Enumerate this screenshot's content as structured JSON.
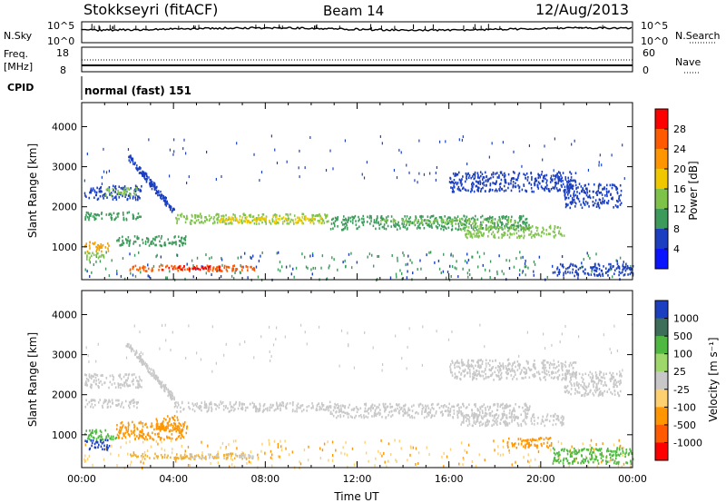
{
  "header": {
    "station": "Stokkseyri (fitACF)",
    "beam": "Beam 14",
    "date": "12/Aug/2013"
  },
  "summary_panels": {
    "nsky_label": "N.Sky",
    "nsky_ticks": [
      "10^5",
      "10^0"
    ],
    "nsearch_label": "N.Search",
    "nsearch_ticks": [
      "10^5",
      "10^0"
    ],
    "freq_label": "Freq.",
    "freq_unit": "[MHz]",
    "freq_ticks": [
      "18",
      "8"
    ],
    "nave_label": "Nave",
    "nave_ticks": [
      "60",
      "0"
    ],
    "cpid_label": "CPID",
    "cpid_value": "normal (fast) 151"
  },
  "chart_data": [
    {
      "type": "heatmap",
      "name": "power",
      "ylabel": "Slant Range [km]",
      "ylim": [
        180,
        4600
      ],
      "yticks": [
        1000,
        2000,
        3000,
        4000
      ],
      "xlim": [
        0,
        24
      ],
      "colorbar_label": "Power [dB]",
      "colorbar_ticks": [
        "28",
        "24",
        "20",
        "16",
        "12",
        "8",
        "4"
      ],
      "colorbar_colors": [
        "#ff0000",
        "#ff5a00",
        "#ff9600",
        "#f0c800",
        "#7fc24a",
        "#3c9a5a",
        "#1b3fc0",
        "#0a14ff"
      ],
      "bands": [
        {
          "t0": 0.1,
          "t1": 2.6,
          "r0": 2200,
          "r1": 2550,
          "color": "#1b3fc0"
        },
        {
          "t0": 0.1,
          "t1": 2.6,
          "r0": 1700,
          "r1": 1900,
          "color": "#3c9a5a"
        },
        {
          "t0": 1.0,
          "t1": 2.4,
          "r0": 2300,
          "r1": 2500,
          "color": "#7fc24a"
        },
        {
          "t0": 0.1,
          "t1": 1.2,
          "r0": 900,
          "r1": 1150,
          "color": "#f0a000"
        },
        {
          "t0": 0.1,
          "t1": 1.0,
          "r0": 700,
          "r1": 900,
          "color": "#7fc24a"
        },
        {
          "t0": 1.5,
          "t1": 4.6,
          "r0": 1050,
          "r1": 1300,
          "color": "#3c9a5a"
        },
        {
          "t0": 2.0,
          "t1": 7.5,
          "r0": 420,
          "r1": 560,
          "color": "#ff5a00"
        },
        {
          "t0": 3.5,
          "t1": 6.0,
          "r0": 450,
          "r1": 550,
          "color": "#ff0000"
        },
        {
          "t0": 4.0,
          "t1": 10.8,
          "r0": 1600,
          "r1": 1850,
          "color": "#7fc24a"
        },
        {
          "t0": 6.0,
          "t1": 10.5,
          "r0": 1620,
          "r1": 1780,
          "color": "#f0c800"
        },
        {
          "t0": 10.8,
          "t1": 19.5,
          "r0": 1450,
          "r1": 1800,
          "color": "#3c9a5a"
        },
        {
          "t0": 13.0,
          "t1": 19.0,
          "r0": 1600,
          "r1": 1720,
          "color": "#7fc24a"
        },
        {
          "t0": 16.5,
          "t1": 21.0,
          "r0": 1250,
          "r1": 1550,
          "color": "#7fc24a"
        },
        {
          "t0": 20.5,
          "t1": 24.0,
          "r0": 300,
          "r1": 600,
          "color": "#1b3fc0"
        },
        {
          "t0": 21.0,
          "t1": 23.5,
          "r0": 2000,
          "r1": 2600,
          "color": "#1b3fc0"
        },
        {
          "t0": 16.0,
          "t1": 21.5,
          "r0": 2400,
          "r1": 2900,
          "color": "#1b3fc0"
        }
      ],
      "streak": {
        "t0": 2.0,
        "r0": 3300,
        "t1": 4.0,
        "r1": 1900,
        "color": "#1b3fc0"
      }
    },
    {
      "type": "heatmap",
      "name": "velocity",
      "ylabel": "Slant Range [km]",
      "xlabel": "Time UT",
      "ylim": [
        180,
        4600
      ],
      "yticks": [
        1000,
        2000,
        3000,
        4000
      ],
      "xlim": [
        0,
        24
      ],
      "xticks": [
        "00:00",
        "04:00",
        "08:00",
        "12:00",
        "16:00",
        "20:00",
        "00:00"
      ],
      "colorbar_label": "Velocity [m s⁻¹]",
      "colorbar_ticks": [
        "1000",
        "500",
        "100",
        "25",
        "-25",
        "-100",
        "-500",
        "-1000"
      ],
      "colorbar_colors": [
        "#1b3fc0",
        "#3c6e5a",
        "#4fb840",
        "#9ed86a",
        "#c8c8c8",
        "#ffd070",
        "#ff9600",
        "#ff5a00",
        "#ff0000"
      ],
      "bands": [
        {
          "t0": 0.1,
          "t1": 2.6,
          "r0": 2200,
          "r1": 2550,
          "color": "#c8c8c8"
        },
        {
          "t0": 0.1,
          "t1": 2.6,
          "r0": 1700,
          "r1": 1900,
          "color": "#c8c8c8"
        },
        {
          "t0": 0.1,
          "t1": 1.5,
          "r0": 900,
          "r1": 1150,
          "color": "#4fb840"
        },
        {
          "t0": 0.1,
          "t1": 1.2,
          "r0": 650,
          "r1": 900,
          "color": "#1b3fc0"
        },
        {
          "t0": 1.5,
          "t1": 4.6,
          "r0": 900,
          "r1": 1350,
          "color": "#ff9600"
        },
        {
          "t0": 3.2,
          "t1": 4.4,
          "r0": 1100,
          "r1": 1500,
          "color": "#ff9600"
        },
        {
          "t0": 2.0,
          "t1": 7.5,
          "r0": 420,
          "r1": 560,
          "color": "#f0b030"
        },
        {
          "t0": 4.5,
          "t1": 7.5,
          "r0": 440,
          "r1": 540,
          "color": "#c8c8c8"
        },
        {
          "t0": 4.0,
          "t1": 10.8,
          "r0": 1600,
          "r1": 1850,
          "color": "#c8c8c8"
        },
        {
          "t0": 10.8,
          "t1": 19.5,
          "r0": 1450,
          "r1": 1800,
          "color": "#c8c8c8"
        },
        {
          "t0": 16.5,
          "t1": 21.0,
          "r0": 1250,
          "r1": 1550,
          "color": "#c8c8c8"
        },
        {
          "t0": 18.5,
          "t1": 20.5,
          "r0": 700,
          "r1": 950,
          "color": "#ff9600"
        },
        {
          "t0": 20.5,
          "t1": 24.0,
          "r0": 300,
          "r1": 700,
          "color": "#4fb840"
        },
        {
          "t0": 21.0,
          "t1": 23.5,
          "r0": 2000,
          "r1": 2600,
          "color": "#c8c8c8"
        },
        {
          "t0": 16.0,
          "t1": 21.5,
          "r0": 2400,
          "r1": 2900,
          "color": "#c8c8c8"
        }
      ],
      "streak": {
        "t0": 2.0,
        "r0": 3300,
        "t1": 4.0,
        "r1": 1900,
        "color": "#c8c8c8"
      }
    }
  ]
}
